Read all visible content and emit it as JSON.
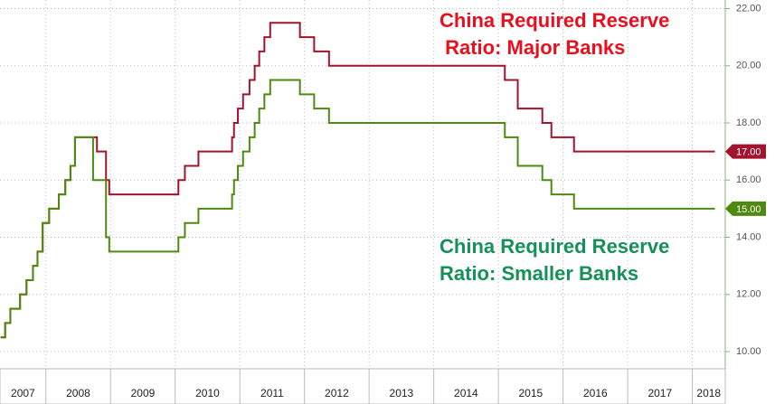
{
  "chart_data": {
    "type": "step",
    "x": [
      2007.3,
      2007.37,
      2007.45,
      2007.6,
      2007.7,
      2007.8,
      2007.87,
      2007.95,
      2008.05,
      2008.2,
      2008.3,
      2008.38,
      2008.45,
      2008.73,
      2008.79,
      2008.93,
      2008.98,
      2010.05,
      2010.15,
      2010.36,
      2010.88,
      2010.91,
      2010.97,
      2011.05,
      2011.15,
      2011.23,
      2011.3,
      2011.38,
      2011.47,
      2011.93,
      2012.15,
      2012.38,
      2015.1,
      2015.3,
      2015.68,
      2015.82,
      2016.17,
      2018.35
    ],
    "series": [
      {
        "name": "Major Banks",
        "color": "#a0142f",
        "end_label": "17.00",
        "values": [
          10.5,
          11,
          11.5,
          12,
          12.5,
          13,
          13.5,
          14.5,
          15,
          15.5,
          16,
          16.5,
          17.5,
          17.5,
          17,
          16,
          15.5,
          16,
          16.5,
          17,
          17.5,
          18,
          18.5,
          19,
          19.5,
          20,
          20.5,
          21,
          21.5,
          21,
          20.5,
          20,
          19.5,
          18.5,
          18,
          17.5,
          17,
          17
        ]
      },
      {
        "name": "Smaller Banks",
        "color": "#4f8a10",
        "end_label": "15.00",
        "values": [
          10.5,
          11,
          11.5,
          12,
          12.5,
          13,
          13.5,
          14.5,
          15,
          15.5,
          16,
          16.5,
          17.5,
          16,
          16,
          14,
          13.5,
          14,
          14.5,
          15,
          15.5,
          16,
          16.5,
          17,
          17.5,
          18,
          18.5,
          19,
          19.5,
          19,
          18.5,
          18,
          17.5,
          16.5,
          16,
          15.5,
          15,
          15
        ]
      }
    ],
    "annotations": [
      {
        "lines": [
          "China Required Reserve",
          " Ratio: Major Banks"
        ],
        "color": "#e8101e"
      },
      {
        "lines": [
          "China Required Reserve",
          "Ratio: Smaller Banks"
        ],
        "color": "#15905a"
      }
    ],
    "xlim": [
      2007.29,
      2018.51
    ],
    "xticks": [
      2008,
      2009,
      2010,
      2011,
      2012,
      2013,
      2014,
      2015,
      2016,
      2017,
      2018
    ],
    "year_labels": [
      "2007",
      "2008",
      "2009",
      "2010",
      "2011",
      "2012",
      "2013",
      "2014",
      "2015",
      "2016",
      "2017",
      "2018"
    ],
    "ylim": [
      9.4,
      22.3
    ],
    "yticks": [
      {
        "value": 10,
        "label": "10.00"
      },
      {
        "value": 12,
        "label": "12.00"
      },
      {
        "value": 14,
        "label": "14.00"
      },
      {
        "value": 16,
        "label": "16.00"
      },
      {
        "value": 18,
        "label": "18.00"
      },
      {
        "value": 20,
        "label": "20.00"
      },
      {
        "value": 22,
        "label": "22.00"
      }
    ],
    "grid": true
  }
}
